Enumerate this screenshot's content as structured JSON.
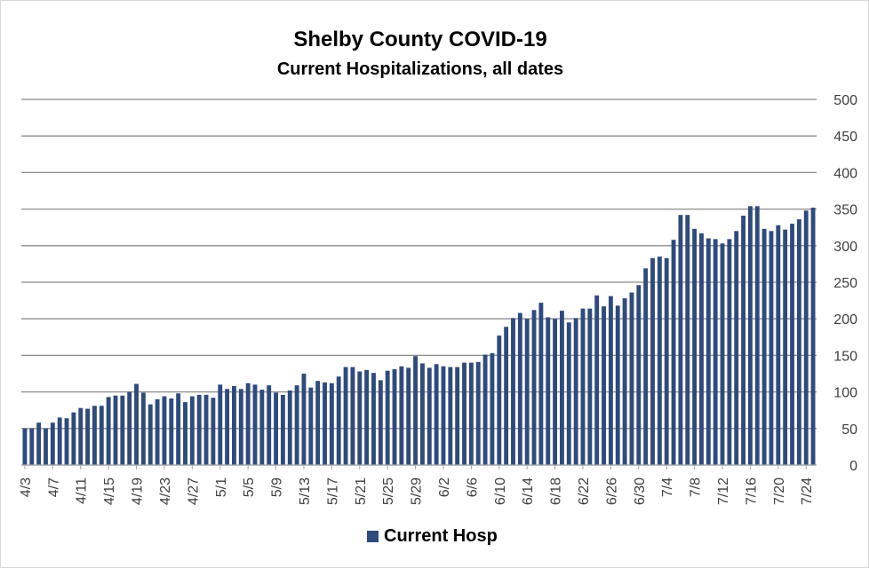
{
  "chart_data": {
    "type": "bar",
    "title": "Shelby County COVID-19",
    "subtitle": "Current Hospitalizations, all dates",
    "xlabel": "",
    "ylabel": "",
    "ylim": [
      0,
      500
    ],
    "yticks": [
      0,
      50,
      100,
      150,
      200,
      250,
      300,
      350,
      400,
      450,
      500
    ],
    "grid": true,
    "y_axis_side": "right",
    "legend_position": "bottom",
    "bar_color": "#2f4a7d",
    "x_tick_labels": [
      "4/3",
      "4/7",
      "4/11",
      "4/15",
      "4/19",
      "4/23",
      "4/27",
      "5/1",
      "5/5",
      "5/9",
      "5/13",
      "5/17",
      "5/21",
      "5/25",
      "5/29",
      "6/2",
      "6/6",
      "6/10",
      "6/14",
      "6/18",
      "6/22",
      "6/26",
      "6/30",
      "7/4",
      "7/8",
      "7/12",
      "7/16",
      "7/20",
      "7/24"
    ],
    "categories": [
      "4/3",
      "4/4",
      "4/5",
      "4/6",
      "4/7",
      "4/8",
      "4/9",
      "4/10",
      "4/11",
      "4/12",
      "4/13",
      "4/14",
      "4/15",
      "4/16",
      "4/17",
      "4/18",
      "4/19",
      "4/20",
      "4/21",
      "4/22",
      "4/23",
      "4/24",
      "4/25",
      "4/26",
      "4/27",
      "4/28",
      "4/29",
      "4/30",
      "5/1",
      "5/2",
      "5/3",
      "5/4",
      "5/5",
      "5/6",
      "5/7",
      "5/8",
      "5/9",
      "5/10",
      "5/11",
      "5/12",
      "5/13",
      "5/14",
      "5/15",
      "5/16",
      "5/17",
      "5/18",
      "5/19",
      "5/20",
      "5/21",
      "5/22",
      "5/23",
      "5/24",
      "5/25",
      "5/26",
      "5/27",
      "5/28",
      "5/29",
      "5/30",
      "5/31",
      "6/1",
      "6/2",
      "6/3",
      "6/4",
      "6/5",
      "6/6",
      "6/7",
      "6/8",
      "6/9",
      "6/10",
      "6/11",
      "6/12",
      "6/13",
      "6/14",
      "6/15",
      "6/16",
      "6/17",
      "6/18",
      "6/19",
      "6/20",
      "6/21",
      "6/22",
      "6/23",
      "6/24",
      "6/25",
      "6/26",
      "6/27",
      "6/28",
      "6/29",
      "6/30",
      "7/1",
      "7/2",
      "7/3",
      "7/4",
      "7/5",
      "7/6",
      "7/7",
      "7/8",
      "7/9",
      "7/10",
      "7/11",
      "7/12",
      "7/13",
      "7/14",
      "7/15",
      "7/16",
      "7/17",
      "7/18",
      "7/19",
      "7/20",
      "7/21",
      "7/22",
      "7/23",
      "7/24",
      "7/25"
    ],
    "series": [
      {
        "name": "Current Hosp",
        "values": [
          50,
          50,
          58,
          50,
          58,
          65,
          64,
          72,
          78,
          77,
          81,
          81,
          93,
          95,
          95,
          100,
          111,
          99,
          83,
          90,
          94,
          91,
          98,
          86,
          94,
          96,
          96,
          92,
          110,
          104,
          108,
          104,
          112,
          110,
          103,
          109,
          99,
          96,
          102,
          109,
          125,
          106,
          115,
          113,
          112,
          121,
          134,
          134,
          128,
          130,
          126,
          116,
          129,
          131,
          135,
          133,
          149,
          139,
          133,
          138,
          135,
          134,
          134,
          140,
          140,
          141,
          151,
          153,
          177,
          189,
          201,
          208,
          200,
          212,
          222,
          202,
          200,
          211,
          195,
          201,
          214,
          214,
          232,
          217,
          231,
          218,
          228,
          236,
          246,
          269,
          283,
          285,
          283,
          308,
          342,
          342,
          323,
          317,
          310,
          309,
          303,
          309,
          320,
          341,
          354,
          354,
          323,
          320,
          328,
          322,
          330,
          336,
          348,
          352
        ]
      }
    ]
  }
}
